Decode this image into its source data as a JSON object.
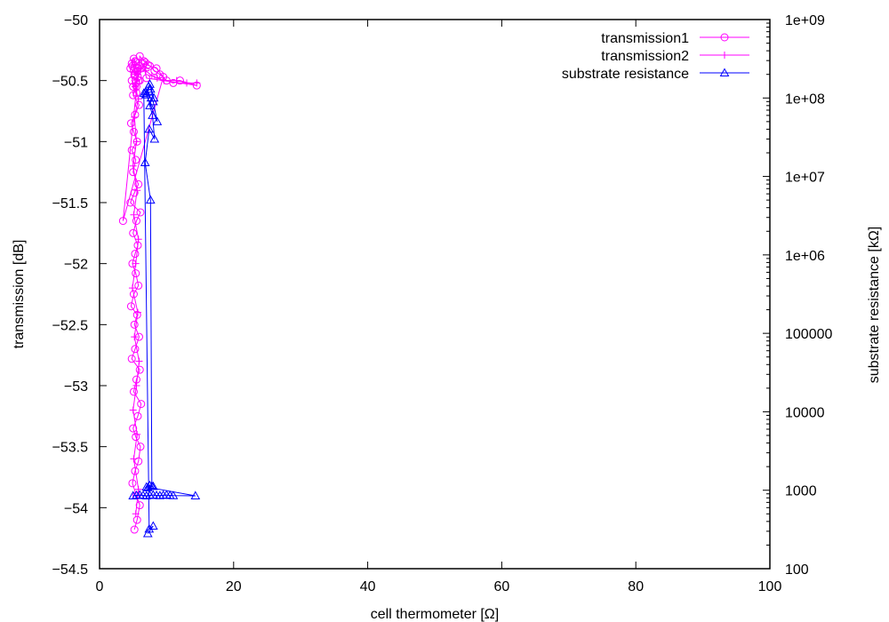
{
  "chart_data": {
    "type": "scatter",
    "title": "",
    "xlabel": "cell thermometer [Ω]",
    "ylabel": "transmission [dB]",
    "y2label": "substrate resistance [kΩ]",
    "xlim": [
      0,
      100
    ],
    "ylim": [
      -54.5,
      -50
    ],
    "y2lim": [
      100,
      1000000000
    ],
    "y2scale": "log",
    "grid": false,
    "legend_position": "top-right",
    "x_ticks": [
      0,
      20,
      40,
      60,
      80,
      100
    ],
    "x_tick_labels": [
      "0",
      "20",
      "40",
      "60",
      "80",
      "100"
    ],
    "y_ticks": [
      -54.5,
      -54,
      -53.5,
      -53,
      -52.5,
      -52,
      -51.5,
      -51,
      -50.5,
      -50
    ],
    "y_tick_labels": [
      "−54.5",
      "−54",
      "−53.5",
      "−53",
      "−52.5",
      "−52",
      "−51.5",
      "−51",
      "−50.5",
      "−50"
    ],
    "y2_ticks": [
      100,
      1000,
      10000,
      100000,
      1000000,
      10000000,
      100000000,
      1000000000
    ],
    "y2_tick_labels": [
      "100",
      "1000",
      "10000",
      "100000",
      "1e+06",
      "1e+07",
      "1e+08",
      "1e+09"
    ],
    "series": [
      {
        "name": "transmission1",
        "axis": "left",
        "marker": "circle",
        "color": "#ff00ff",
        "x": [
          5.2,
          5.6,
          6.0,
          5.5,
          4.9,
          5.3,
          5.8,
          6.1,
          5.4,
          5.0,
          5.7,
          6.2,
          5.1,
          5.5,
          6.0,
          4.8,
          5.3,
          5.9,
          5.2,
          5.6,
          4.7,
          5.1,
          5.8,
          5.4,
          4.9,
          5.3,
          5.7,
          5.0,
          5.5,
          6.1,
          4.6,
          5.2,
          5.8,
          5.0,
          5.4,
          4.8,
          5.6,
          5.1,
          4.7,
          5.3,
          5.9,
          5.0,
          5.5,
          4.8,
          5.2,
          5.7,
          4.9,
          5.4,
          5.1,
          4.6,
          5.3,
          5.8,
          5.0,
          5.5,
          6.0,
          5.2,
          5.6,
          4.8,
          5.3,
          5.9,
          5.1,
          5.7,
          5.4,
          6.3,
          6.8,
          7.5,
          8.2,
          9.0,
          10.0,
          11.0,
          12.0,
          14.5,
          7.0,
          6.5,
          8.5,
          9.5,
          3.5,
          6.0,
          6.6,
          7.2
        ],
        "y": [
          -54.18,
          -54.1,
          -53.98,
          -53.9,
          -53.8,
          -53.7,
          -53.62,
          -53.5,
          -53.42,
          -53.35,
          -53.25,
          -53.15,
          -53.05,
          -52.95,
          -52.87,
          -52.78,
          -52.7,
          -52.6,
          -52.5,
          -52.42,
          -52.35,
          -52.25,
          -52.18,
          -52.08,
          -52.0,
          -51.92,
          -51.85,
          -51.75,
          -51.65,
          -51.58,
          -51.5,
          -51.42,
          -51.35,
          -51.25,
          -51.15,
          -51.07,
          -51.0,
          -50.92,
          -50.85,
          -50.78,
          -50.7,
          -50.62,
          -50.55,
          -50.5,
          -50.46,
          -50.42,
          -50.38,
          -50.35,
          -50.32,
          -50.4,
          -50.45,
          -50.5,
          -50.55,
          -50.6,
          -50.5,
          -50.45,
          -50.4,
          -50.36,
          -50.34,
          -50.38,
          -50.42,
          -50.47,
          -50.52,
          -50.4,
          -50.35,
          -50.38,
          -50.42,
          -50.45,
          -50.5,
          -50.52,
          -50.5,
          -50.54,
          -50.48,
          -50.36,
          -50.4,
          -50.47,
          -51.65,
          -50.3,
          -50.34,
          -50.37
        ]
      },
      {
        "name": "transmission2",
        "axis": "left",
        "marker": "plus",
        "color": "#ff00ff",
        "x": [
          5.4,
          5.8,
          5.1,
          5.6,
          5.0,
          5.5,
          5.9,
          5.2,
          5.7,
          4.9,
          5.4,
          5.8,
          5.1,
          5.6,
          5.0,
          5.5,
          5.2,
          5.8,
          5.3,
          5.7,
          6.2,
          6.9,
          7.8,
          8.6,
          9.6,
          11.5,
          13.0,
          14.5
        ],
        "y": [
          -54.05,
          -53.85,
          -53.6,
          -53.4,
          -53.2,
          -53.0,
          -52.8,
          -52.6,
          -52.4,
          -52.2,
          -52.0,
          -51.8,
          -51.6,
          -51.4,
          -51.2,
          -51.0,
          -50.8,
          -50.65,
          -50.55,
          -50.45,
          -50.4,
          -50.42,
          -50.46,
          -50.48,
          -50.5,
          -50.5,
          -50.52,
          -50.52
        ]
      },
      {
        "name": "substrate resistance",
        "axis": "right",
        "marker": "triangle",
        "color": "#0000ff",
        "x": [
          5.0,
          5.5,
          6.0,
          6.5,
          7.0,
          7.5,
          8.0,
          8.5,
          9.0,
          9.5,
          10.0,
          10.5,
          11.0,
          14.3,
          7.0,
          7.5,
          8.0,
          7.2,
          7.8,
          7.6,
          6.8,
          7.4,
          8.2,
          7.9,
          7.5,
          7.7,
          8.0,
          8.6,
          7.0,
          6.9,
          7.6,
          8.1,
          7.5,
          7.3,
          6.9,
          6.6,
          7.4,
          8.0,
          7.2
        ],
        "y": [
          850,
          860,
          870,
          860,
          850,
          860,
          870,
          860,
          855,
          865,
          870,
          860,
          855,
          850,
          1100,
          1150,
          1120,
          1080,
          1130,
          5000000,
          15000000,
          40000000,
          30000000,
          60000000,
          80000000,
          100000000,
          90000000,
          50000000,
          110000000,
          120000000,
          130000000,
          100000000,
          150000000,
          140000000,
          110000000,
          115000000,
          320,
          350,
          280
        ]
      }
    ]
  }
}
